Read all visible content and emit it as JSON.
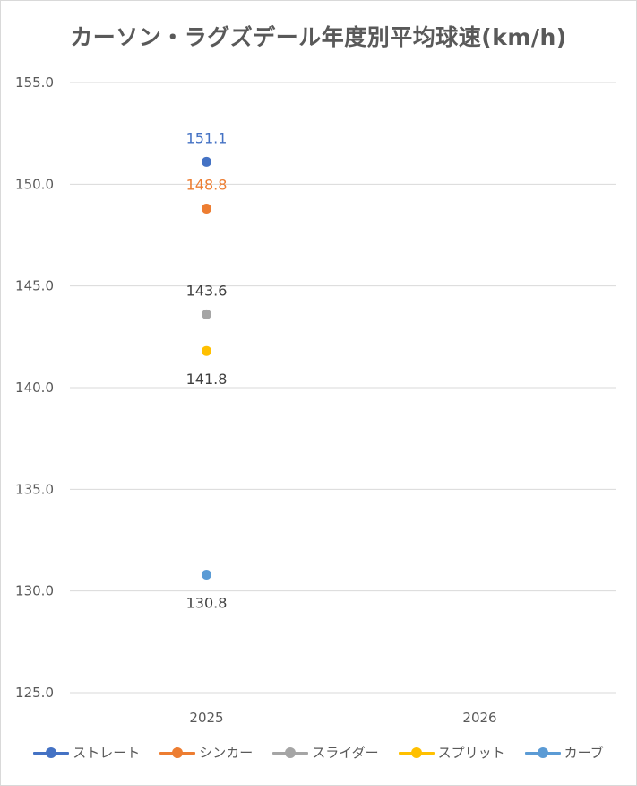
{
  "chart_data": {
    "type": "scatter",
    "title": "カーソン・ラグズデール年度別平均球速(km/h)",
    "categories": [
      "2025",
      "2026"
    ],
    "ylim": [
      125.0,
      155.0
    ],
    "y_ticks": [
      "125.0",
      "130.0",
      "135.0",
      "140.0",
      "145.0",
      "150.0",
      "155.0"
    ],
    "grid": true,
    "legend_position": "bottom",
    "series": [
      {
        "name": "ストレート",
        "color": "#4472c4",
        "values": [
          151.1,
          null
        ],
        "labels": [
          "151.1",
          ""
        ],
        "label_side": "above"
      },
      {
        "name": "シンカー",
        "color": "#ed7d31",
        "values": [
          148.8,
          null
        ],
        "labels": [
          "148.8",
          ""
        ],
        "label_side": "above"
      },
      {
        "name": "スライダー",
        "color": "#a5a5a5",
        "values": [
          143.6,
          null
        ],
        "labels": [
          "143.6",
          ""
        ],
        "label_side": "above"
      },
      {
        "name": "スプリット",
        "color": "#ffc000",
        "values": [
          141.8,
          null
        ],
        "labels": [
          "141.8",
          ""
        ],
        "label_side": "below"
      },
      {
        "name": "カーブ",
        "color": "#5b9bd5",
        "values": [
          130.8,
          null
        ],
        "labels": [
          "130.8",
          ""
        ],
        "label_side": "below"
      }
    ]
  }
}
